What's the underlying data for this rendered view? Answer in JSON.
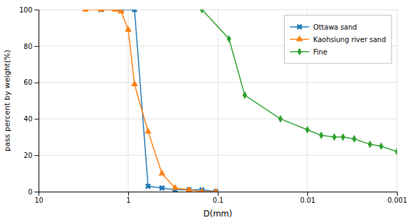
{
  "chart_data": {
    "type": "line",
    "x_label": "D(mm)",
    "y_label": "pass percent by weight(%)",
    "log": "x",
    "xlim": [
      10,
      0.001
    ],
    "ylim": [
      0,
      100
    ],
    "xticks": [
      10,
      1,
      0.1,
      0.01,
      0.001
    ],
    "yticks": [
      0,
      20,
      40,
      60,
      80,
      100
    ],
    "grid": true,
    "legend": "upper right",
    "series": [
      {
        "name": "Ottawa sand",
        "marker": "x",
        "line_style": "solid",
        "x": [
          2.0,
          1.2,
          0.85,
          0.6,
          0.42,
          0.3,
          0.21,
          0.15,
          0.105
        ],
        "values": [
          100,
          100,
          100,
          3,
          2,
          1,
          1,
          1,
          0
        ]
      },
      {
        "name": "Kaohsiung river sand",
        "marker": "triangle",
        "line_style": "solid",
        "x": [
          3.0,
          2.0,
          1.4,
          1.2,
          1.0,
          0.85,
          0.6,
          0.42,
          0.3,
          0.21,
          0.15,
          0.105
        ],
        "values": [
          100,
          100,
          100,
          99,
          89,
          59,
          33,
          10,
          2,
          1,
          0,
          0
        ]
      },
      {
        "name": "Fine",
        "marker": "diamond",
        "line_style": "solid",
        "x": [
          0.15,
          0.075,
          0.05,
          0.02,
          0.01,
          0.007,
          0.005,
          0.004,
          0.003,
          0.002,
          0.0015,
          0.001
        ],
        "values": [
          100,
          84,
          53,
          40,
          34,
          31,
          30,
          30,
          29,
          26,
          25,
          22
        ]
      }
    ]
  }
}
